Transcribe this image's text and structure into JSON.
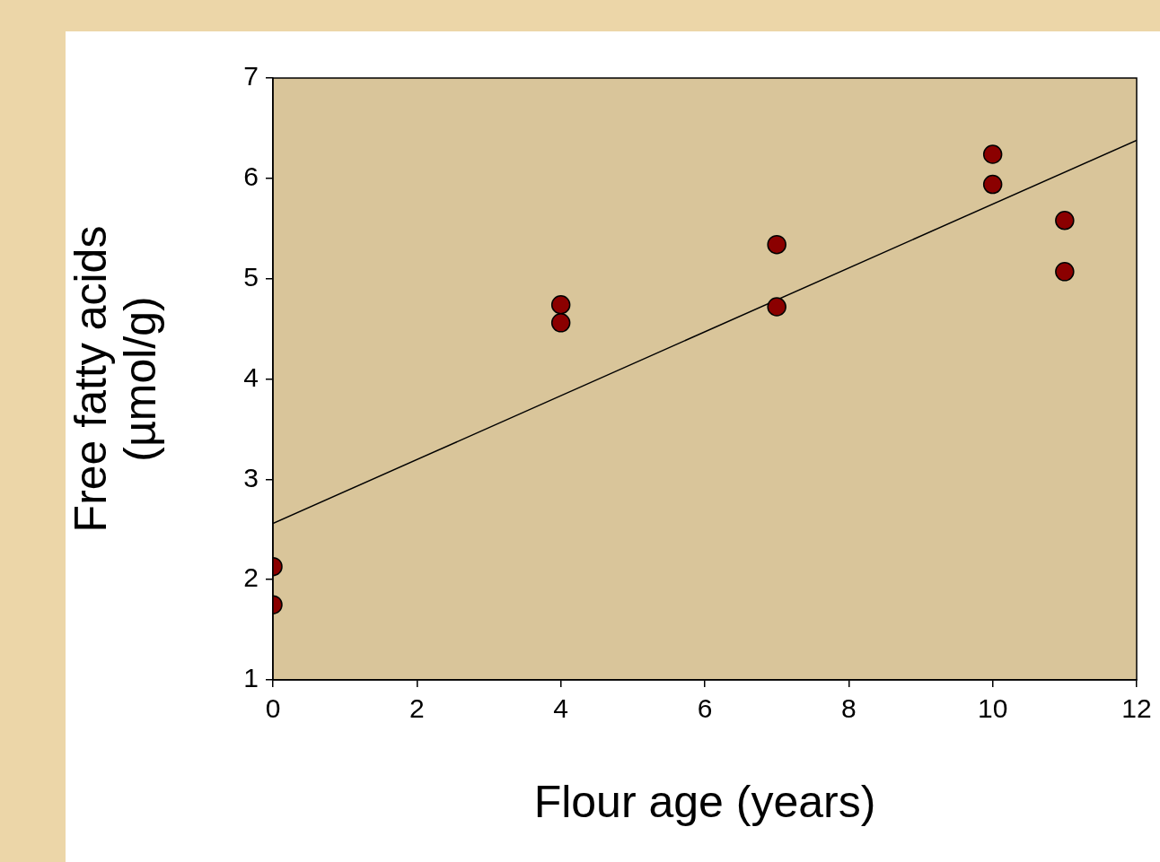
{
  "chart_data": {
    "type": "scatter",
    "xlabel": "Flour age (years)",
    "ylabel": "Free fatty acids (µmol/g)",
    "xlim": [
      0,
      12
    ],
    "xticks": [
      0,
      2,
      4,
      6,
      8,
      10,
      12
    ],
    "ylim": [
      1,
      7
    ],
    "yticks": [
      1,
      2,
      3,
      4,
      5,
      6,
      7
    ],
    "grid": false,
    "legend": false,
    "marker": "circle",
    "series": [
      {
        "color": "#8b0000",
        "x": [
          0,
          0,
          4,
          4,
          7,
          7,
          10,
          10,
          11,
          11
        ],
        "values": [
          2.13,
          1.75,
          4.74,
          4.56,
          5.34,
          4.72,
          6.24,
          5.94,
          5.58,
          5.07
        ]
      },
      {
        "type": "line",
        "color": "#000000",
        "x": [
          0,
          12
        ],
        "values": [
          2.56,
          6.38
        ],
        "marker": "none",
        "line_style": "solid"
      }
    ]
  }
}
